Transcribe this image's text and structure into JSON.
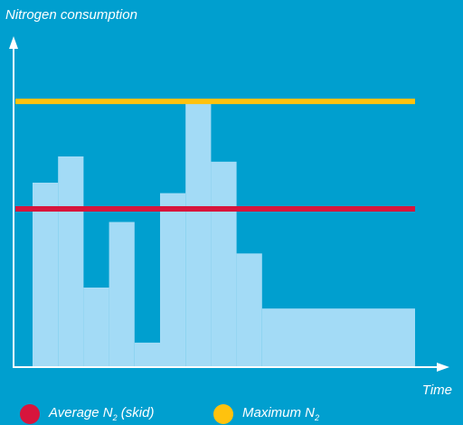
{
  "chart_data": {
    "type": "bar",
    "title": "",
    "ylabel": "Nitrogen consumption",
    "xlabel": "Time",
    "x_unit_count": 15,
    "ylim": [
      0,
      100
    ],
    "steps": [
      {
        "x_start": 0,
        "x_end": 1,
        "value": 70
      },
      {
        "x_start": 1,
        "x_end": 2,
        "value": 80
      },
      {
        "x_start": 2,
        "x_end": 3,
        "value": 30
      },
      {
        "x_start": 3,
        "x_end": 4,
        "value": 55
      },
      {
        "x_start": 4,
        "x_end": 5,
        "value": 9
      },
      {
        "x_start": 5,
        "x_end": 6,
        "value": 66
      },
      {
        "x_start": 6,
        "x_end": 7,
        "value": 100
      },
      {
        "x_start": 7,
        "x_end": 8,
        "value": 78
      },
      {
        "x_start": 8,
        "x_end": 9,
        "value": 43
      },
      {
        "x_start": 9,
        "x_end": 15,
        "value": 22
      }
    ],
    "reference_lines": [
      {
        "name": "Average N2 (skid)",
        "value": 60,
        "color": "#d7153c"
      },
      {
        "name": "Maximum N2",
        "value": 101,
        "color": "#ffc20e"
      }
    ],
    "bar_color": "#a3dbf6",
    "axis_color": "#ffffff",
    "grid": false,
    "legend_position": "bottom"
  },
  "legend": {
    "items": [
      {
        "prefix": "Average N",
        "subscript": "2",
        "suffix": " (skid)",
        "color": "#d7153c"
      },
      {
        "prefix": "Maximum N",
        "subscript": "2",
        "suffix": "",
        "color": "#ffc20e"
      }
    ]
  },
  "background_color": "#009fcf"
}
